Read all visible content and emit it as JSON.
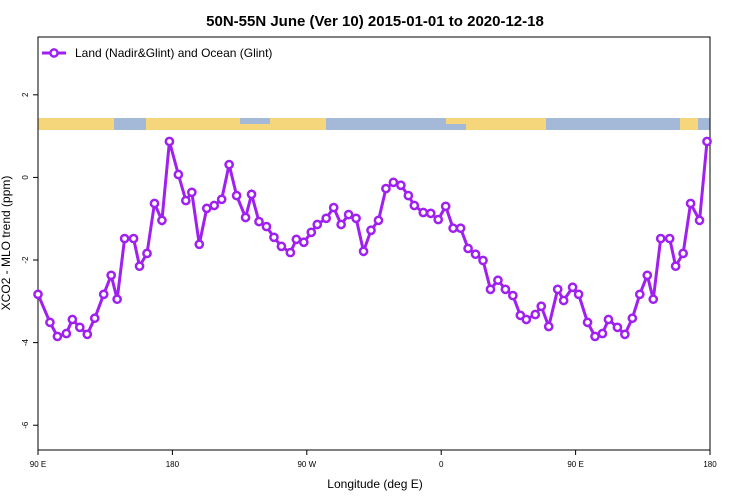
{
  "chart_data": {
    "type": "line",
    "title": "50N-55N June (Ver 10)   2015-01-01 to 2020-12-18",
    "x_label": "Longitude (deg E)",
    "y_label": "XCO2 - MLO trend (ppm)",
    "xlim": [
      90,
      540
    ],
    "ylim": [
      -6.6,
      3.4
    ],
    "xticks": [
      {
        "value": 90,
        "label": "90 E"
      },
      180,
      {
        "value": 270,
        "label": "90 W"
      },
      {
        "value": 360,
        "label": "0"
      },
      {
        "value": 450,
        "label": "90 E"
      },
      {
        "value": 540,
        "label": "180"
      }
    ],
    "yticks": [
      -6,
      -4,
      -2,
      0,
      2
    ],
    "legend": "top-left",
    "x": [
      90,
      98,
      103,
      109,
      113,
      118,
      123,
      128,
      134,
      139,
      143,
      148,
      154,
      158,
      163,
      168,
      173,
      178,
      184,
      189,
      193,
      198,
      203,
      208,
      213,
      218,
      223,
      229,
      233,
      238,
      243,
      248,
      253,
      259,
      263,
      268,
      273,
      277,
      283,
      288,
      293,
      298,
      303,
      308,
      313,
      318,
      323,
      328,
      333,
      338,
      342,
      348,
      353,
      358,
      363,
      368,
      373,
      378,
      383,
      388,
      393,
      398,
      403,
      408,
      413,
      417,
      423,
      427,
      432,
      438,
      442,
      448,
      452,
      458,
      463,
      468,
      472,
      478,
      483,
      488,
      493,
      498,
      502,
      507,
      513,
      517,
      522,
      527,
      533,
      538
    ],
    "series": [
      {
        "name": "Land (Nadir&Glint) and Ocean (Glint)",
        "color": "#a020f0",
        "values": [
          -2.83,
          -3.51,
          -3.85,
          -3.78,
          -3.44,
          -3.63,
          -3.8,
          -3.41,
          -2.83,
          -2.37,
          -2.95,
          -1.48,
          -1.48,
          -2.15,
          -1.84,
          -0.63,
          -1.04,
          0.87,
          0.07,
          -0.56,
          -0.36,
          -1.62,
          -0.75,
          -0.68,
          -0.53,
          0.31,
          -0.44,
          -0.97,
          -0.41,
          -1.07,
          -1.19,
          -1.45,
          -1.67,
          -1.82,
          -1.5,
          -1.57,
          -1.33,
          -1.14,
          -0.99,
          -0.73,
          -1.14,
          -0.9,
          -0.99,
          -1.79,
          -1.28,
          -1.04,
          -0.27,
          -0.12,
          -0.19,
          -0.44,
          -0.68,
          -0.85,
          -0.87,
          -1.02,
          -0.7,
          -1.23,
          -1.23,
          -1.72,
          -1.86,
          -2.01,
          -2.71,
          -2.49,
          -2.71,
          -2.86,
          -3.34,
          -3.44,
          -3.32,
          -3.12,
          -3.61,
          -2.71,
          -2.98,
          -2.66,
          -2.83,
          -3.51,
          -3.85,
          -3.78,
          -3.44,
          -3.63,
          -3.8,
          -3.41,
          -2.83,
          -2.37,
          -2.95,
          -1.48,
          -1.48,
          -2.15,
          -1.84,
          -0.63,
          -1.04,
          0.87
        ]
      }
    ]
  }
}
